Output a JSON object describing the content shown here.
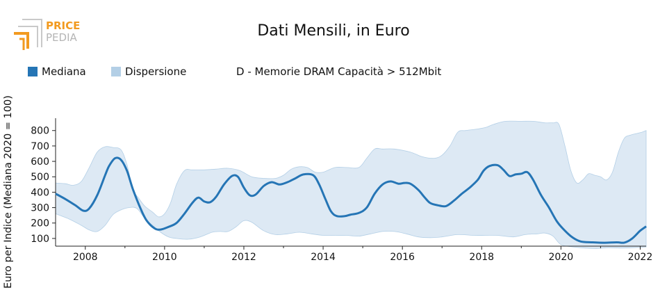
{
  "logo": {
    "text_top": "PRICE",
    "text_bottom": "PEDIA"
  },
  "chart_data": {
    "type": "area",
    "title": "Dati Mensili, in Euro",
    "ylabel": "Euro per Indice (Mediana 2020 = 100)",
    "xlabel": "",
    "product_label": "D - Memorie DRAM Capacità > 512Mbit",
    "legend": [
      {
        "label": "Mediana",
        "color": "#2575b5"
      },
      {
        "label": "Dispersione",
        "color": "#b3cfe6"
      }
    ],
    "xlim": [
      2007.25,
      2022.15
    ],
    "ylim": [
      50,
      880
    ],
    "x_ticks": [
      2008,
      2010,
      2012,
      2014,
      2016,
      2018,
      2020,
      2022
    ],
    "y_ticks": [
      100,
      200,
      300,
      400,
      500,
      600,
      700,
      800
    ],
    "colors": {
      "median_line": "#2575b5",
      "band_fill": "#dde9f4",
      "band_edge": "#b3cfe6"
    },
    "series": [
      {
        "name": "Mediana",
        "x": [
          2007.25,
          2007.5,
          2007.75,
          2007.95,
          2008.1,
          2008.3,
          2008.5,
          2008.6,
          2008.75,
          2008.9,
          2009.05,
          2009.2,
          2009.4,
          2009.55,
          2009.75,
          2009.9,
          2010.1,
          2010.3,
          2010.5,
          2010.7,
          2010.85,
          2011.0,
          2011.15,
          2011.3,
          2011.5,
          2011.7,
          2011.85,
          2012.0,
          2012.15,
          2012.3,
          2012.5,
          2012.7,
          2012.9,
          2013.1,
          2013.3,
          2013.5,
          2013.75,
          2013.9,
          2014.05,
          2014.2,
          2014.35,
          2014.55,
          2014.7,
          2014.9,
          2015.1,
          2015.3,
          2015.5,
          2015.7,
          2015.9,
          2016.05,
          2016.2,
          2016.4,
          2016.55,
          2016.7,
          2016.9,
          2017.1,
          2017.3,
          2017.5,
          2017.7,
          2017.9,
          2018.05,
          2018.2,
          2018.4,
          2018.55,
          2018.7,
          2018.85,
          2019.0,
          2019.15,
          2019.3,
          2019.5,
          2019.7,
          2019.9,
          2020.1,
          2020.3,
          2020.5,
          2020.8,
          2021.1,
          2021.4,
          2021.6,
          2021.8,
          2022.0,
          2022.15
        ],
        "y": [
          390,
          355,
          315,
          280,
          295,
          380,
          510,
          570,
          620,
          610,
          540,
          420,
          290,
          215,
          165,
          158,
          175,
          200,
          260,
          330,
          365,
          340,
          335,
          370,
          450,
          505,
          500,
          430,
          380,
          385,
          440,
          465,
          450,
          465,
          490,
          515,
          510,
          450,
          360,
          275,
          245,
          245,
          255,
          265,
          300,
          390,
          450,
          470,
          455,
          460,
          455,
          415,
          370,
          330,
          315,
          310,
          345,
          390,
          430,
          480,
          540,
          570,
          575,
          545,
          505,
          515,
          520,
          530,
          480,
          380,
          300,
          210,
          150,
          105,
          80,
          75,
          72,
          75,
          73,
          100,
          150,
          178
        ]
      },
      {
        "name": "Dispersione (max)",
        "x": [
          2007.25,
          2007.5,
          2007.7,
          2007.9,
          2008.1,
          2008.3,
          2008.5,
          2008.7,
          2008.9,
          2009.05,
          2009.2,
          2009.35,
          2009.5,
          2009.7,
          2009.85,
          2010.0,
          2010.15,
          2010.3,
          2010.5,
          2010.7,
          2011.0,
          2011.3,
          2011.6,
          2011.9,
          2012.2,
          2012.5,
          2012.8,
          2013.0,
          2013.2,
          2013.4,
          2013.6,
          2013.8,
          2014.0,
          2014.3,
          2014.6,
          2014.9,
          2015.1,
          2015.3,
          2015.5,
          2015.8,
          2016.2,
          2016.5,
          2016.8,
          2017.0,
          2017.2,
          2017.4,
          2017.6,
          2017.9,
          2018.1,
          2018.3,
          2018.6,
          2019.0,
          2019.3,
          2019.6,
          2019.8,
          2019.95,
          2020.1,
          2020.25,
          2020.4,
          2020.55,
          2020.7,
          2020.85,
          2021.0,
          2021.15,
          2021.3,
          2021.45,
          2021.6,
          2021.75,
          2021.9,
          2022.05,
          2022.15
        ],
        "y": [
          460,
          455,
          445,
          470,
          560,
          660,
          695,
          690,
          675,
          580,
          420,
          360,
          310,
          270,
          240,
          260,
          330,
          450,
          540,
          545,
          545,
          550,
          555,
          540,
          500,
          490,
          490,
          510,
          550,
          565,
          560,
          530,
          530,
          560,
          560,
          560,
          620,
          680,
          680,
          680,
          660,
          630,
          620,
          640,
          700,
          790,
          800,
          810,
          820,
          840,
          860,
          860,
          860,
          850,
          850,
          840,
          700,
          540,
          460,
          480,
          520,
          510,
          500,
          480,
          530,
          660,
          750,
          770,
          780,
          790,
          800
        ]
      },
      {
        "name": "Dispersione (min)",
        "x": [
          2007.25,
          2007.6,
          2007.9,
          2008.1,
          2008.3,
          2008.5,
          2008.7,
          2008.9,
          2009.1,
          2009.3,
          2009.5,
          2009.7,
          2009.9,
          2010.1,
          2010.3,
          2010.6,
          2010.9,
          2011.2,
          2011.4,
          2011.6,
          2011.8,
          2012.0,
          2012.2,
          2012.5,
          2012.8,
          2013.1,
          2013.4,
          2013.7,
          2014.0,
          2014.3,
          2014.6,
          2014.9,
          2015.2,
          2015.5,
          2015.8,
          2016.1,
          2016.4,
          2016.7,
          2017.0,
          2017.4,
          2017.8,
          2018.1,
          2018.4,
          2018.8,
          2019.1,
          2019.4,
          2019.6,
          2019.8,
          2020.0,
          2020.3,
          2020.6,
          2020.9,
          2021.2,
          2021.5,
          2021.8,
          2022.15
        ],
        "y": [
          260,
          225,
          185,
          155,
          145,
          185,
          255,
          285,
          300,
          295,
          230,
          185,
          140,
          110,
          100,
          95,
          110,
          140,
          145,
          145,
          175,
          215,
          205,
          150,
          125,
          130,
          140,
          130,
          120,
          120,
          120,
          115,
          130,
          145,
          145,
          130,
          110,
          105,
          110,
          125,
          120,
          120,
          120,
          110,
          125,
          130,
          135,
          115,
          60,
          45,
          38,
          35,
          40,
          38,
          40,
          45
        ]
      }
    ]
  }
}
